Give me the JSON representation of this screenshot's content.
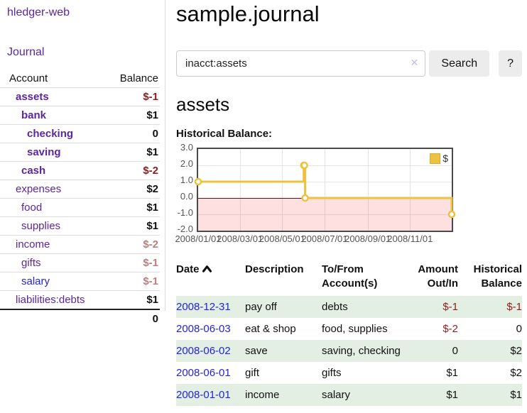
{
  "sidebar": {
    "brand": "hledger-web",
    "nav": {
      "journal": "Journal"
    },
    "columns": {
      "account": "Account",
      "balance": "Balance"
    },
    "accounts": [
      {
        "name": "assets",
        "balance": "$-1",
        "sign": "neg"
      },
      {
        "name": "bank",
        "balance": "$1",
        "sign": ""
      },
      {
        "name": "checking",
        "balance": "0",
        "sign": ""
      },
      {
        "name": "saving",
        "balance": "$1",
        "sign": ""
      },
      {
        "name": "cash",
        "balance": "$-2",
        "sign": "neg"
      },
      {
        "name": "expenses",
        "balance": "$2",
        "sign": ""
      },
      {
        "name": "food",
        "balance": "$1",
        "sign": ""
      },
      {
        "name": "supplies",
        "balance": "$1",
        "sign": ""
      },
      {
        "name": "income",
        "balance": "$-2",
        "sign": "negsoft"
      },
      {
        "name": "gifts",
        "balance": "$-1",
        "sign": "negsoft"
      },
      {
        "name": "salary",
        "balance": "$-1",
        "sign": "negsoft"
      },
      {
        "name": "liabilities:debts",
        "balance": "$1",
        "sign": ""
      }
    ],
    "total": "0"
  },
  "main": {
    "title": "sample.journal",
    "search": {
      "query": "inacct:assets",
      "clear_icon": "✕",
      "button_label": "Search",
      "help_label": "?"
    },
    "account_heading": "assets",
    "chart_label": "Historical Balance:"
  },
  "chart_data": {
    "type": "line",
    "step": true,
    "title": "Historical Balance",
    "series": [
      {
        "name": "$",
        "color": "#EDC240",
        "points": [
          [
            "2008-01-01",
            1
          ],
          [
            "2008-06-01",
            2
          ],
          [
            "2008-06-02",
            2
          ],
          [
            "2008-06-03",
            0
          ],
          [
            "2008-12-31",
            -1
          ]
        ]
      }
    ],
    "xlim": [
      "2008-01-01",
      "2008-12-31"
    ],
    "ylim": [
      -2,
      3
    ],
    "y_ticks": [
      3.0,
      2.0,
      1.0,
      0.0,
      -1.0,
      -2.0
    ],
    "x_ticks": [
      "2008/01/01",
      "2008/03/01",
      "2008/05/01",
      "2008/07/01",
      "2008/09/01",
      "2008/11/01"
    ],
    "legend_position": "top-right",
    "grid": true,
    "zero_line_color": "#8b0000",
    "negative_region_color": "rgba(255,0,0,0.12)"
  },
  "register": {
    "headers": {
      "date": "Date",
      "description": "Description",
      "tofrom_line1": "To/From",
      "tofrom_line2": "Account(s)",
      "amount_line1": "Amount",
      "amount_line2": "Out/In",
      "balance_line1": "Historical",
      "balance_line2": "Balance"
    },
    "rows": [
      {
        "date": "2008-12-31",
        "description": "pay off",
        "accounts": "debts",
        "amount": "$-1",
        "amount_sign": "neg",
        "balance": "$-1",
        "balance_sign": "neg"
      },
      {
        "date": "2008-06-03",
        "description": "eat & shop",
        "accounts": "food, supplies",
        "amount": "$-2",
        "amount_sign": "neg",
        "balance": "0",
        "balance_sign": ""
      },
      {
        "date": "2008-06-02",
        "description": "save",
        "accounts": "saving, checking",
        "amount": "0",
        "amount_sign": "",
        "balance": "$2",
        "balance_sign": ""
      },
      {
        "date": "2008-06-01",
        "description": "gift",
        "accounts": "gifts",
        "amount": "$1",
        "amount_sign": "",
        "balance": "$2",
        "balance_sign": ""
      },
      {
        "date": "2008-01-01",
        "description": "income",
        "accounts": "salary",
        "amount": "$1",
        "amount_sign": "",
        "balance": "$1",
        "balance_sign": ""
      }
    ]
  }
}
